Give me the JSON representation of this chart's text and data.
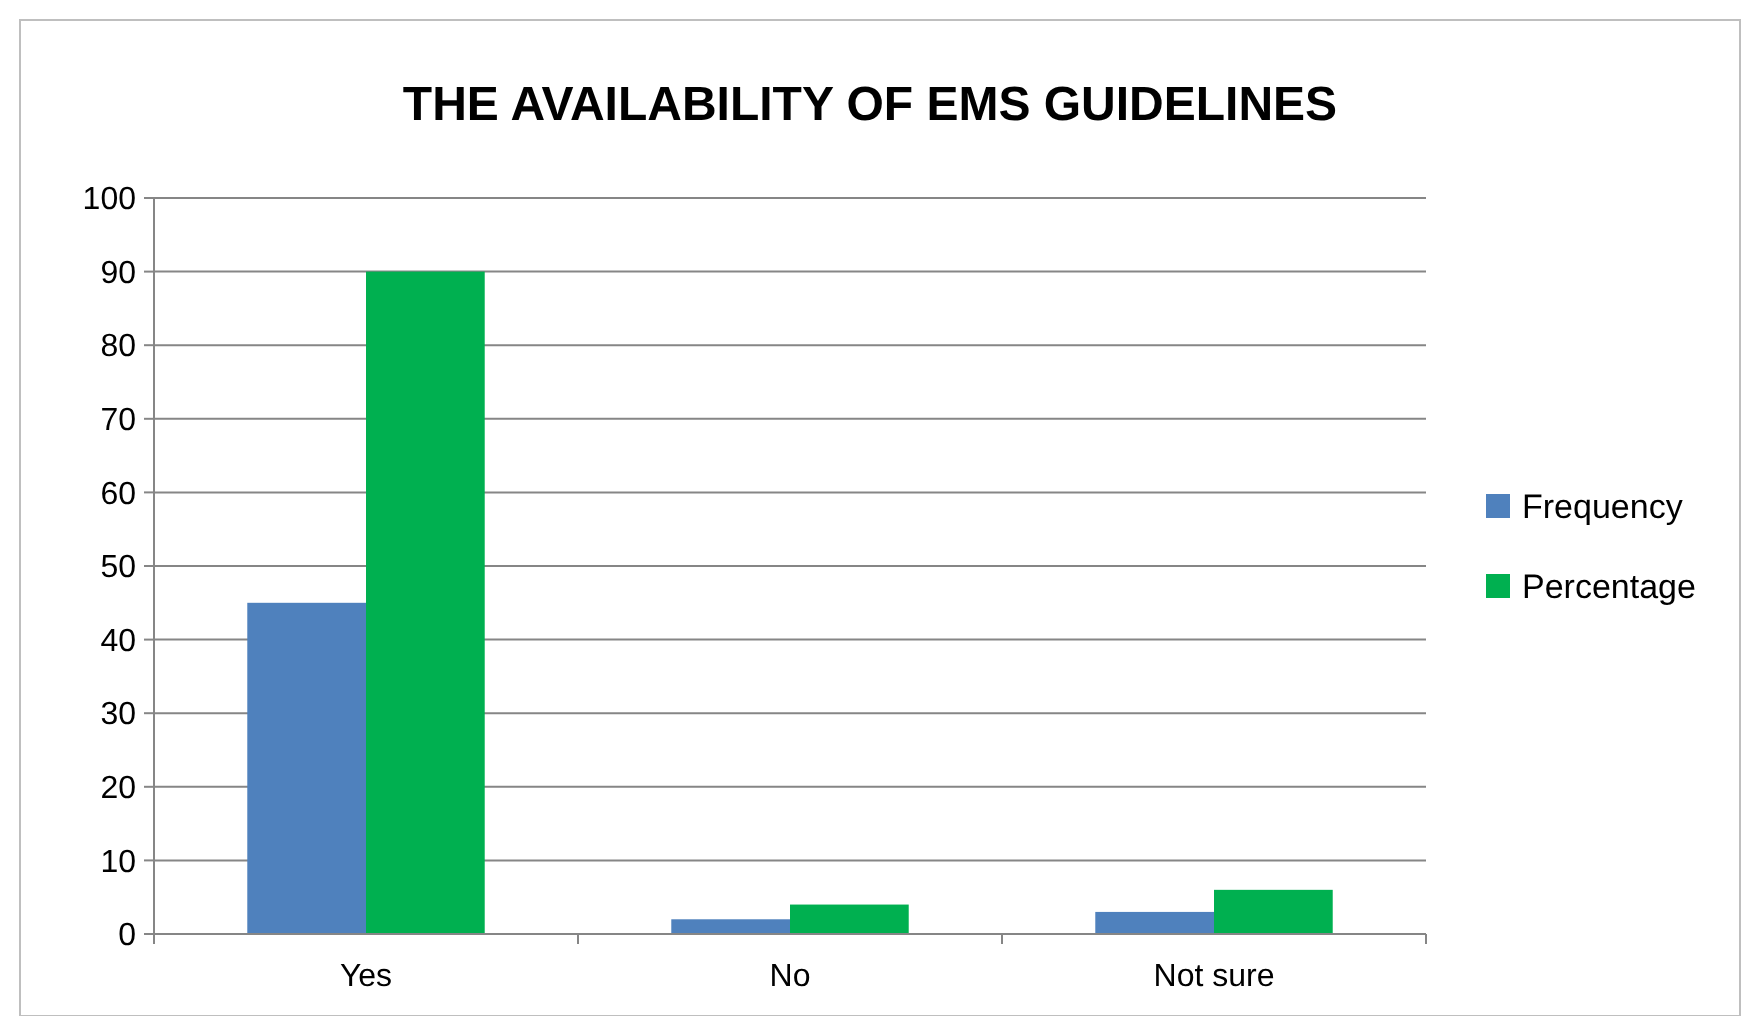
{
  "chart_data": {
    "type": "bar",
    "title": "THE AVAILABILITY OF EMS GUIDELINES",
    "categories": [
      "Yes",
      "No",
      "Not sure"
    ],
    "series": [
      {
        "name": "Frequency",
        "color": "#4f81bd",
        "values": [
          45,
          2,
          3
        ]
      },
      {
        "name": "Percentage",
        "color": "#00b050",
        "values": [
          90,
          4,
          6
        ]
      }
    ],
    "ylim": [
      0,
      100
    ],
    "yticks": [
      0,
      10,
      20,
      30,
      40,
      50,
      60,
      70,
      80,
      90,
      100
    ],
    "grid": "y",
    "legend": "right"
  }
}
